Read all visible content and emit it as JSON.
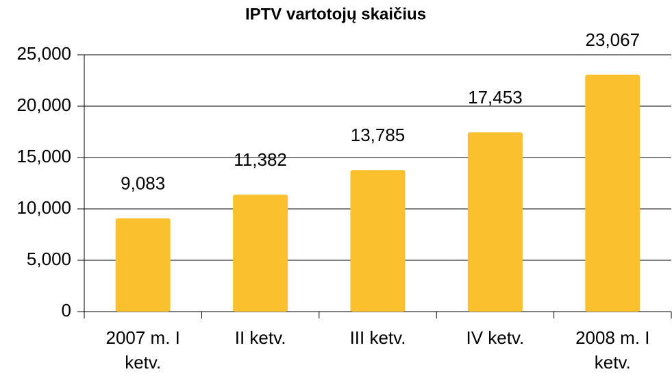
{
  "chart_data": {
    "type": "bar",
    "title": "IPTV vartotojų skaičius",
    "categories": [
      "2007 m. I ketv.",
      "II ketv.",
      "III ketv.",
      "IV ketv.",
      "2008 m. I ketv."
    ],
    "values": [
      9083,
      11382,
      13785,
      17453,
      23067
    ],
    "value_labels": [
      "9,083",
      "11,382",
      "13,785",
      "17,453",
      "23,067"
    ],
    "color": "#fbc02d",
    "ylim": [
      0,
      25000
    ],
    "yticks": [
      0,
      {
        "value": 5000,
        "label": "5,000"
      },
      {
        "value": 10000,
        "label": "10,000"
      },
      {
        "value": 15000,
        "label": "15,000"
      },
      {
        "value": 20000,
        "label": "20,000"
      },
      {
        "value": 25000,
        "label": "25,000"
      }
    ],
    "grid": true
  }
}
